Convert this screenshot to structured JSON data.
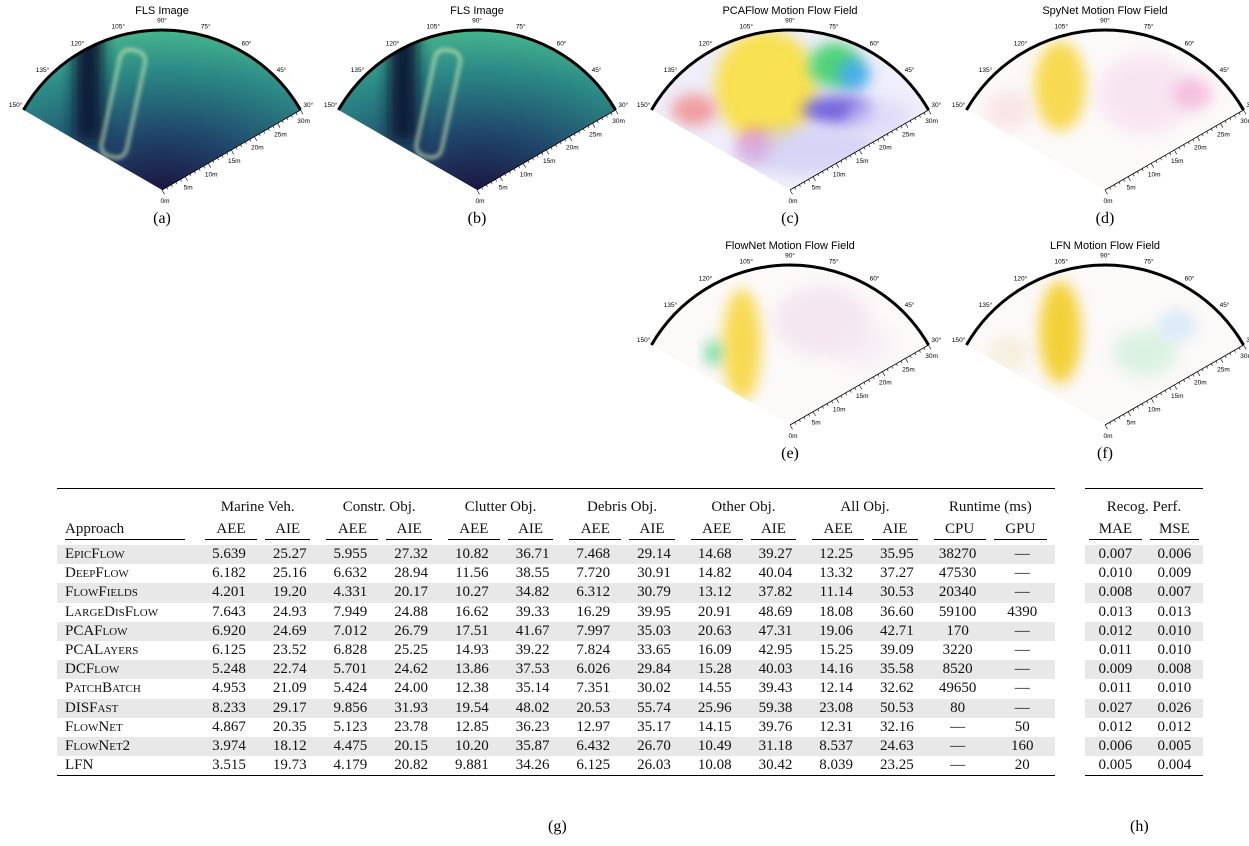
{
  "panels": [
    {
      "title": "FLS Image",
      "caption": "(a)"
    },
    {
      "title": "FLS Image",
      "caption": "(b)"
    },
    {
      "title": "PCAFlow Motion Flow Field",
      "caption": "(c)"
    },
    {
      "title": "SpyNet Motion Flow Field",
      "caption": "(d)"
    },
    {
      "title": "FlowNet Motion Flow Field",
      "caption": "(e)"
    },
    {
      "title": "LFN Motion Flow Field",
      "caption": "(f)"
    }
  ],
  "fan": {
    "angle_labels": [
      "150°",
      "135°",
      "120°",
      "105°",
      "90°",
      "75°",
      "60°",
      "45°",
      "30°"
    ],
    "range_labels": [
      "0m",
      "5m",
      "10m",
      "15m",
      "20m",
      "25m",
      "30m"
    ]
  },
  "table": {
    "approach_header": "Approach",
    "groups": [
      "Marine Veh.",
      "Constr. Obj.",
      "Clutter Obj.",
      "Debris Obj.",
      "Other Obj.",
      "All Obj.",
      "Runtime (ms)"
    ],
    "subheaders": [
      "AEE",
      "AIE",
      "AEE",
      "AIE",
      "AEE",
      "AIE",
      "AEE",
      "AIE",
      "AEE",
      "AIE",
      "AEE",
      "AIE",
      "CPU",
      "GPU"
    ],
    "rows": [
      [
        "EpicFlow",
        "5.639",
        "25.27",
        "5.955",
        "27.32",
        "10.82",
        "36.71",
        "7.468",
        "29.14",
        "14.68",
        "39.27",
        "12.25",
        "35.95",
        "38270",
        "—"
      ],
      [
        "DeepFlow",
        "6.182",
        "25.16",
        "6.632",
        "28.94",
        "11.56",
        "38.55",
        "7.720",
        "30.91",
        "14.82",
        "40.04",
        "13.32",
        "37.27",
        "47530",
        "—"
      ],
      [
        "FlowFields",
        "4.201",
        "19.20",
        "4.331",
        "20.17",
        "10.27",
        "34.82",
        "6.312",
        "30.79",
        "13.12",
        "37.82",
        "11.14",
        "30.53",
        "20340",
        "—"
      ],
      [
        "LargeDisFlow",
        "7.643",
        "24.93",
        "7.949",
        "24.88",
        "16.62",
        "39.33",
        "16.29",
        "39.95",
        "20.91",
        "48.69",
        "18.08",
        "36.60",
        "59100",
        "4390"
      ],
      [
        "PCAFlow",
        "6.920",
        "24.69",
        "7.012",
        "26.79",
        "17.51",
        "41.67",
        "7.997",
        "35.03",
        "20.63",
        "47.31",
        "19.06",
        "42.71",
        "170",
        "—"
      ],
      [
        "PCALayers",
        "6.125",
        "23.52",
        "6.828",
        "25.25",
        "14.93",
        "39.22",
        "7.824",
        "33.65",
        "16.09",
        "42.95",
        "15.25",
        "39.09",
        "3220",
        "—"
      ],
      [
        "DCFlow",
        "5.248",
        "22.74",
        "5.701",
        "24.62",
        "13.86",
        "37.53",
        "6.026",
        "29.84",
        "15.28",
        "40.03",
        "14.16",
        "35.58",
        "8520",
        "—"
      ],
      [
        "PatchBatch",
        "4.953",
        "21.09",
        "5.424",
        "24.00",
        "12.38",
        "35.14",
        "7.351",
        "30.02",
        "14.55",
        "39.43",
        "12.14",
        "32.62",
        "49650",
        "—"
      ],
      [
        "DISFast",
        "8.233",
        "29.17",
        "9.856",
        "31.93",
        "19.54",
        "48.02",
        "20.53",
        "55.74",
        "25.96",
        "59.38",
        "23.08",
        "50.53",
        "80",
        "—"
      ],
      [
        "FlowNet",
        "4.867",
        "20.35",
        "5.123",
        "23.78",
        "12.85",
        "36.23",
        "12.97",
        "35.17",
        "14.15",
        "39.76",
        "12.31",
        "32.16",
        "—",
        "50"
      ],
      [
        "FlowNet2",
        "3.974",
        "18.12",
        "4.475",
        "20.15",
        "10.20",
        "35.87",
        "6.432",
        "26.70",
        "10.49",
        "31.18",
        "8.537",
        "24.63",
        "—",
        "160"
      ],
      [
        "LFN",
        "3.515",
        "19.73",
        "4.179",
        "20.82",
        "9.881",
        "34.26",
        "6.125",
        "26.03",
        "10.08",
        "30.42",
        "8.039",
        "23.25",
        "—",
        "20"
      ]
    ],
    "caption": "(g)"
  },
  "table2": {
    "group": "Recog. Perf.",
    "subheaders": [
      "MAE",
      "MSE"
    ],
    "rows": [
      [
        "0.007",
        "0.006"
      ],
      [
        "0.010",
        "0.009"
      ],
      [
        "0.008",
        "0.007"
      ],
      [
        "0.013",
        "0.013"
      ],
      [
        "0.012",
        "0.010"
      ],
      [
        "0.011",
        "0.010"
      ],
      [
        "0.009",
        "0.008"
      ],
      [
        "0.011",
        "0.010"
      ],
      [
        "0.027",
        "0.026"
      ],
      [
        "0.012",
        "0.012"
      ],
      [
        "0.006",
        "0.005"
      ],
      [
        "0.005",
        "0.004"
      ]
    ],
    "caption": "(h)"
  }
}
